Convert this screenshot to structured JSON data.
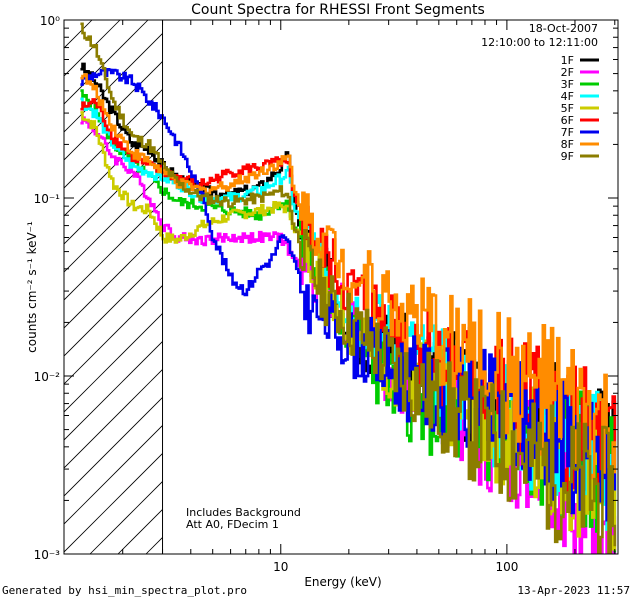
{
  "footer": {
    "generated_by": "Generated by hsi_min_spectra_plot.pro",
    "timestamp": "13-Apr-2023 11:57"
  },
  "chart_data": {
    "type": "line",
    "title": "Count Spectra for RHESSI Front Segments",
    "xlabel": "Energy (keV)",
    "ylabel": "counts cm⁻² s⁻¹ keV⁻¹",
    "xscale": "log",
    "yscale": "log",
    "xlim": [
      1.1,
      310
    ],
    "ylim": [
      0.001,
      1.0
    ],
    "x_ticks": [
      {
        "value": 10,
        "label": "10"
      },
      {
        "value": 100,
        "label": "100"
      }
    ],
    "y_ticks": [
      {
        "value": 1.0,
        "label": "10⁰"
      },
      {
        "value": 0.1,
        "label": "10⁻¹"
      },
      {
        "value": 0.01,
        "label": "10⁻²"
      },
      {
        "value": 0.001,
        "label": "10⁻³"
      }
    ],
    "date": "18-Oct-2007",
    "time_range": "12:10:00 to 12:11:00",
    "annotations": [
      "Includes Background",
      "Att A0, FDecim 1"
    ],
    "hatched_region": {
      "x_from": 1.1,
      "x_to": 3.0
    },
    "legend_position": "top-right",
    "series": [
      {
        "name": "1F",
        "color": "#000000",
        "points": [
          [
            1.3,
            0.55
          ],
          [
            1.5,
            0.45
          ],
          [
            1.8,
            0.3
          ],
          [
            2.2,
            0.2
          ],
          [
            2.6,
            0.19
          ],
          [
            3.0,
            0.15
          ],
          [
            3.5,
            0.13
          ],
          [
            4.5,
            0.11
          ],
          [
            6,
            0.105
          ],
          [
            8,
            0.115
          ],
          [
            10,
            0.15
          ],
          [
            10.8,
            0.18
          ],
          [
            11.3,
            0.09
          ],
          [
            13,
            0.055
          ],
          [
            15,
            0.04
          ],
          [
            20,
            0.02
          ],
          [
            30,
            0.014
          ],
          [
            50,
            0.01
          ],
          [
            70,
            0.008
          ],
          [
            100,
            0.007
          ],
          [
            150,
            0.006
          ],
          [
            200,
            0.005
          ],
          [
            250,
            0.0045
          ],
          [
            300,
            0.003
          ]
        ]
      },
      {
        "name": "2F",
        "color": "#ff00ff",
        "points": [
          [
            1.3,
            0.28
          ],
          [
            1.5,
            0.24
          ],
          [
            1.8,
            0.17
          ],
          [
            2.2,
            0.14
          ],
          [
            2.6,
            0.1
          ],
          [
            3.0,
            0.07
          ],
          [
            3.5,
            0.06
          ],
          [
            4.5,
            0.058
          ],
          [
            6,
            0.06
          ],
          [
            8,
            0.06
          ],
          [
            10,
            0.06
          ],
          [
            10.8,
            0.05
          ],
          [
            11.3,
            0.045
          ],
          [
            13,
            0.04
          ],
          [
            15,
            0.035
          ],
          [
            20,
            0.02
          ],
          [
            30,
            0.01
          ],
          [
            50,
            0.007
          ],
          [
            70,
            0.005
          ],
          [
            100,
            0.004
          ],
          [
            150,
            0.003
          ],
          [
            200,
            0.0018
          ],
          [
            250,
            0.0012
          ],
          [
            300,
            0.001
          ]
        ]
      },
      {
        "name": "3F",
        "color": "#00cc00",
        "points": [
          [
            1.3,
            0.38
          ],
          [
            1.5,
            0.32
          ],
          [
            1.8,
            0.2
          ],
          [
            2.2,
            0.16
          ],
          [
            2.6,
            0.13
          ],
          [
            3.0,
            0.11
          ],
          [
            3.5,
            0.095
          ],
          [
            4.5,
            0.09
          ],
          [
            6,
            0.085
          ],
          [
            8,
            0.08
          ],
          [
            10,
            0.095
          ],
          [
            10.8,
            0.09
          ],
          [
            11.3,
            0.07
          ],
          [
            13,
            0.05
          ],
          [
            15,
            0.035
          ],
          [
            20,
            0.018
          ],
          [
            30,
            0.009
          ],
          [
            50,
            0.006
          ],
          [
            70,
            0.005
          ],
          [
            100,
            0.0045
          ],
          [
            150,
            0.004
          ],
          [
            200,
            0.0035
          ],
          [
            250,
            0.003
          ],
          [
            300,
            0.0025
          ]
        ]
      },
      {
        "name": "4F",
        "color": "#00ffff",
        "points": [
          [
            1.3,
            0.35
          ],
          [
            1.5,
            0.3
          ],
          [
            1.8,
            0.2
          ],
          [
            2.2,
            0.15
          ],
          [
            2.6,
            0.14
          ],
          [
            3.0,
            0.13
          ],
          [
            3.5,
            0.12
          ],
          [
            4.5,
            0.1
          ],
          [
            6,
            0.1
          ],
          [
            8,
            0.11
          ],
          [
            10,
            0.13
          ],
          [
            10.8,
            0.14
          ],
          [
            11.3,
            0.09
          ],
          [
            13,
            0.06
          ],
          [
            15,
            0.045
          ],
          [
            20,
            0.025
          ],
          [
            30,
            0.016
          ],
          [
            50,
            0.01
          ],
          [
            70,
            0.008
          ],
          [
            100,
            0.006
          ],
          [
            150,
            0.005
          ],
          [
            200,
            0.004
          ],
          [
            250,
            0.0035
          ],
          [
            300,
            0.003
          ]
        ]
      },
      {
        "name": "5F",
        "color": "#cccc00",
        "points": [
          [
            1.3,
            0.3
          ],
          [
            1.5,
            0.25
          ],
          [
            1.8,
            0.12
          ],
          [
            2.2,
            0.09
          ],
          [
            2.6,
            0.085
          ],
          [
            3.0,
            0.06
          ],
          [
            3.5,
            0.058
          ],
          [
            4.5,
            0.07
          ],
          [
            6,
            0.08
          ],
          [
            8,
            0.085
          ],
          [
            10,
            0.09
          ],
          [
            10.8,
            0.085
          ],
          [
            11.3,
            0.07
          ],
          [
            13,
            0.05
          ],
          [
            15,
            0.04
          ],
          [
            20,
            0.02
          ],
          [
            30,
            0.012
          ],
          [
            50,
            0.008
          ],
          [
            70,
            0.006
          ],
          [
            100,
            0.005
          ],
          [
            150,
            0.004
          ],
          [
            200,
            0.003
          ],
          [
            250,
            0.0025
          ],
          [
            300,
            0.002
          ]
        ]
      },
      {
        "name": "6F",
        "color": "#ff0000",
        "points": [
          [
            1.3,
            0.32
          ],
          [
            1.5,
            0.35
          ],
          [
            1.8,
            0.22
          ],
          [
            2.2,
            0.17
          ],
          [
            2.6,
            0.15
          ],
          [
            3.0,
            0.14
          ],
          [
            3.5,
            0.13
          ],
          [
            4.5,
            0.12
          ],
          [
            6,
            0.14
          ],
          [
            8,
            0.15
          ],
          [
            10,
            0.16
          ],
          [
            10.8,
            0.15
          ],
          [
            11.3,
            0.1
          ],
          [
            13,
            0.07
          ],
          [
            15,
            0.05
          ],
          [
            20,
            0.03
          ],
          [
            30,
            0.02
          ],
          [
            50,
            0.013
          ],
          [
            70,
            0.01
          ],
          [
            100,
            0.008
          ],
          [
            150,
            0.006
          ],
          [
            200,
            0.005
          ],
          [
            250,
            0.004
          ],
          [
            300,
            0.0035
          ]
        ]
      },
      {
        "name": "7F",
        "color": "#0000ee",
        "points": [
          [
            1.3,
            0.45
          ],
          [
            1.5,
            0.5
          ],
          [
            1.8,
            0.5
          ],
          [
            2.2,
            0.45
          ],
          [
            2.6,
            0.35
          ],
          [
            3.0,
            0.28
          ],
          [
            3.5,
            0.2
          ],
          [
            4.5,
            0.1
          ],
          [
            5,
            0.06
          ],
          [
            6,
            0.035
          ],
          [
            7,
            0.03
          ],
          [
            8,
            0.04
          ],
          [
            9,
            0.045
          ],
          [
            10,
            0.06
          ],
          [
            10.8,
            0.055
          ],
          [
            11.3,
            0.045
          ],
          [
            12,
            0.035
          ],
          [
            13,
            0.025
          ],
          [
            15,
            0.022
          ],
          [
            20,
            0.016
          ],
          [
            30,
            0.011
          ],
          [
            50,
            0.008
          ],
          [
            70,
            0.007
          ],
          [
            100,
            0.006
          ],
          [
            150,
            0.005
          ],
          [
            200,
            0.004
          ],
          [
            250,
            0.003
          ],
          [
            300,
            0.0025
          ]
        ]
      },
      {
        "name": "8F",
        "color": "#ff8c00",
        "points": [
          [
            1.3,
            0.5
          ],
          [
            1.5,
            0.4
          ],
          [
            1.8,
            0.25
          ],
          [
            2.2,
            0.18
          ],
          [
            2.6,
            0.16
          ],
          [
            3.0,
            0.14
          ],
          [
            3.5,
            0.12
          ],
          [
            4.5,
            0.11
          ],
          [
            6,
            0.12
          ],
          [
            8,
            0.14
          ],
          [
            10,
            0.16
          ],
          [
            10.8,
            0.17
          ],
          [
            11.3,
            0.11
          ],
          [
            13,
            0.08
          ],
          [
            15,
            0.06
          ],
          [
            20,
            0.04
          ],
          [
            30,
            0.025
          ],
          [
            50,
            0.017
          ],
          [
            70,
            0.013
          ],
          [
            100,
            0.01
          ],
          [
            150,
            0.008
          ],
          [
            200,
            0.006
          ],
          [
            250,
            0.005
          ],
          [
            300,
            0.004
          ]
        ]
      },
      {
        "name": "9F",
        "color": "#8b7d00",
        "points": [
          [
            1.3,
            0.9
          ],
          [
            1.5,
            0.7
          ],
          [
            1.8,
            0.35
          ],
          [
            2.2,
            0.22
          ],
          [
            2.6,
            0.2
          ],
          [
            3.0,
            0.15
          ],
          [
            3.5,
            0.12
          ],
          [
            4.5,
            0.1
          ],
          [
            6,
            0.095
          ],
          [
            8,
            0.1
          ],
          [
            10,
            0.11
          ],
          [
            10.8,
            0.1
          ],
          [
            11.3,
            0.07
          ],
          [
            13,
            0.045
          ],
          [
            15,
            0.03
          ],
          [
            20,
            0.02
          ],
          [
            30,
            0.012
          ],
          [
            50,
            0.007
          ],
          [
            70,
            0.005
          ],
          [
            100,
            0.004
          ],
          [
            150,
            0.003
          ],
          [
            200,
            0.0025
          ],
          [
            250,
            0.0022
          ],
          [
            300,
            0.002
          ]
        ]
      }
    ]
  }
}
